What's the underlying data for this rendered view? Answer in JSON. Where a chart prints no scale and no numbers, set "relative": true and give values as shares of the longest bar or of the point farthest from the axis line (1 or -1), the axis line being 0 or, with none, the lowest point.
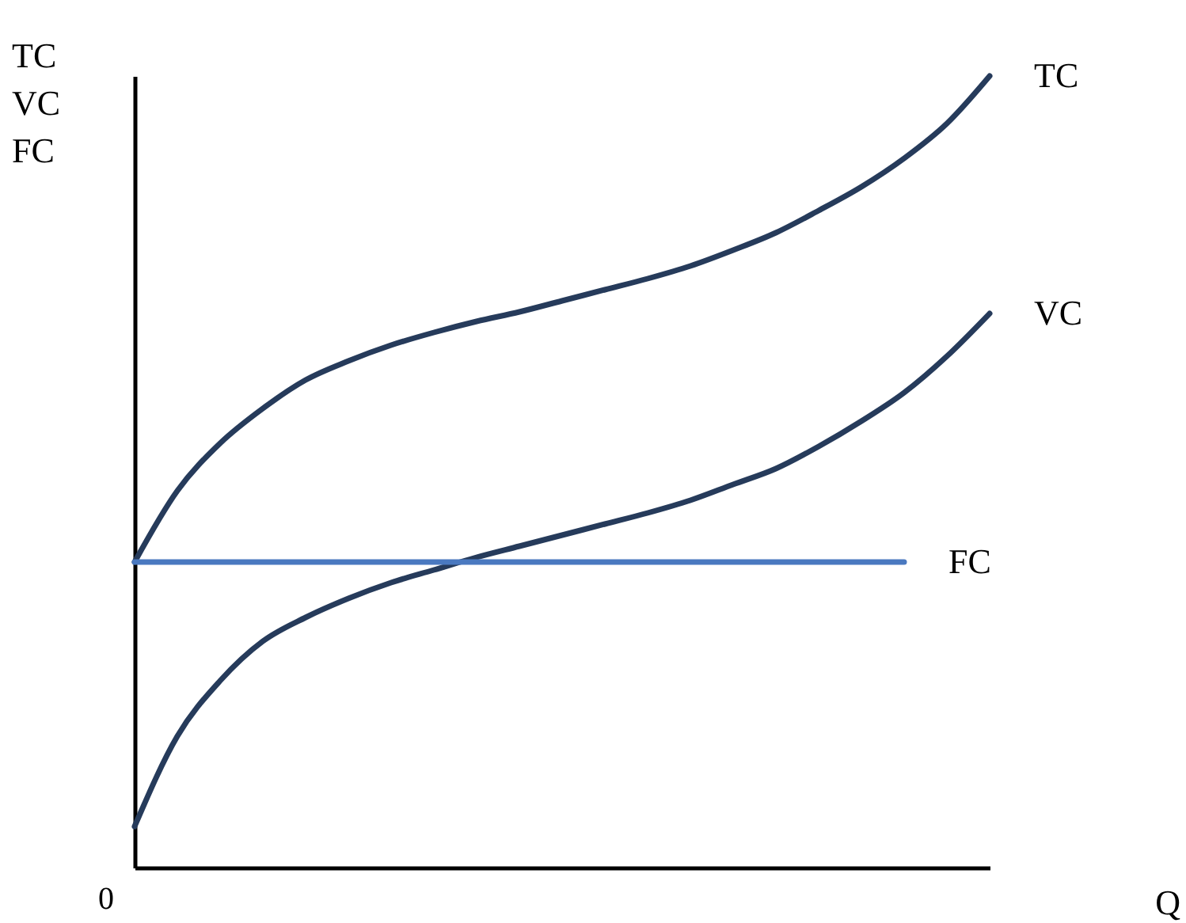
{
  "chart_data": {
    "type": "line",
    "relative": true,
    "xlabel": "Q",
    "ylabel": "TC\nVC\nFC",
    "annotations": [
      "0"
    ],
    "categories": [
      null,
      null,
      null,
      null,
      null,
      null,
      null,
      null,
      null,
      null,
      null,
      null,
      null,
      null,
      null,
      null,
      null,
      null,
      null,
      null,
      null
    ],
    "series": [
      {
        "name": "TC",
        "color": "#263b5b",
        "values": [
          0.386,
          0.476,
          0.536,
          0.58,
          0.616,
          0.64,
          0.66,
          0.676,
          0.69,
          0.702,
          0.716,
          0.73,
          0.744,
          0.76,
          0.78,
          0.802,
          0.83,
          0.86,
          0.896,
          0.94,
          1.0
        ]
      },
      {
        "name": "VC",
        "color": "#263b5b",
        "values": [
          0.052,
          0.166,
          0.236,
          0.286,
          0.316,
          0.34,
          0.36,
          0.376,
          0.392,
          0.406,
          0.42,
          0.434,
          0.448,
          0.464,
          0.484,
          0.504,
          0.532,
          0.564,
          0.6,
          0.646,
          0.7
        ]
      },
      {
        "name": "FC",
        "color": "#4a79c0",
        "values": [
          0.386,
          0.386,
          0.386,
          0.386,
          0.386,
          0.386,
          0.386,
          0.386,
          0.386,
          0.386,
          0.386,
          0.386,
          0.386,
          0.386,
          0.386,
          0.386,
          0.386,
          0.386,
          0.386,
          null,
          null
        ]
      }
    ],
    "grid": false,
    "legend": false,
    "marker": "none",
    "line_style": "solid"
  }
}
